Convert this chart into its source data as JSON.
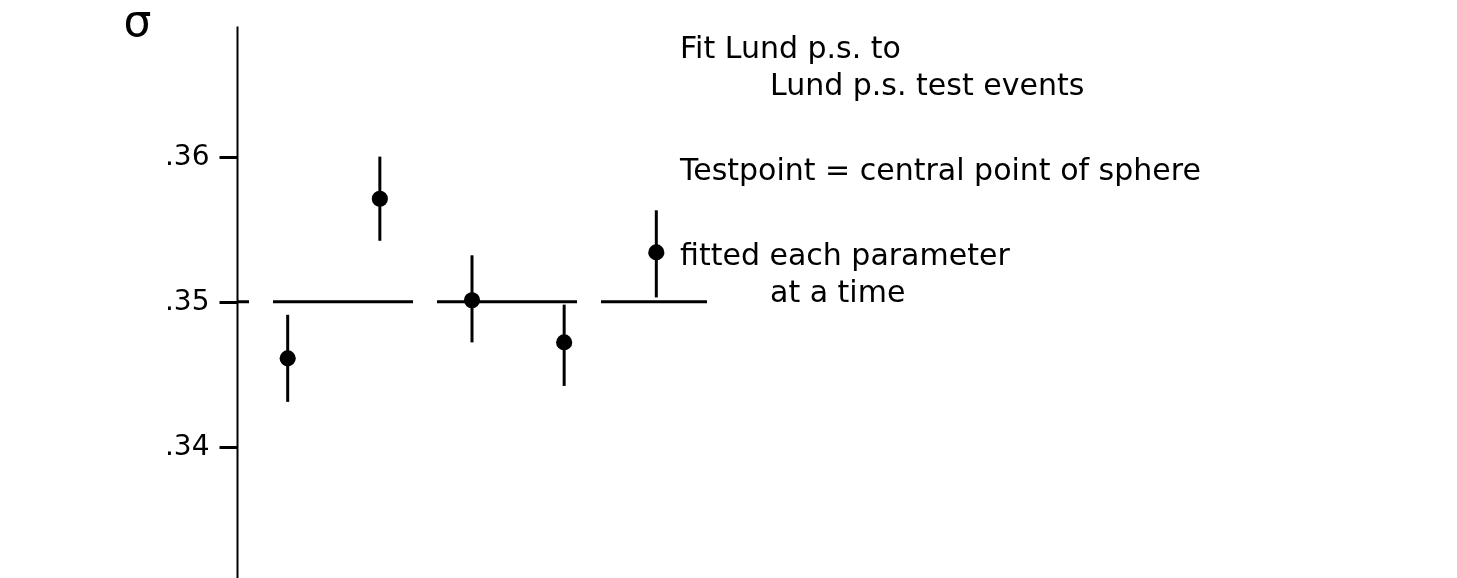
{
  "chart_data": {
    "type": "scatter",
    "ylabel": "σ",
    "categories": [
      null,
      null,
      null,
      null,
      null
    ],
    "values": [
      0.3461,
      0.3571,
      0.3501,
      0.3472,
      0.3534
    ],
    "errors": [
      [
        0.3431,
        0.3491
      ],
      [
        0.3542,
        0.36
      ],
      [
        0.3472,
        0.3532
      ],
      [
        0.3442,
        0.3498
      ],
      [
        0.3503,
        0.3563
      ]
    ],
    "color": "#000000",
    "marker": "circle",
    "ylim": [
      0.33,
      0.369
    ],
    "yticks": [
      {
        "value": 0.34,
        "label": ".34"
      },
      {
        "value": 0.35,
        "label": ".35"
      },
      {
        "value": 0.36,
        "label": ".36"
      }
    ],
    "tick_labels": "y",
    "ref_lines": [
      {
        "axis": "y",
        "value": 0.35,
        "line_style": "dashed",
        "color": "#000000"
      }
    ],
    "annotations": [
      "Fit Lund p.s. to",
      "Lund p.s. test events",
      "Testpoint = central point of sphere",
      "fitted each parameter",
      "at a time"
    ]
  }
}
